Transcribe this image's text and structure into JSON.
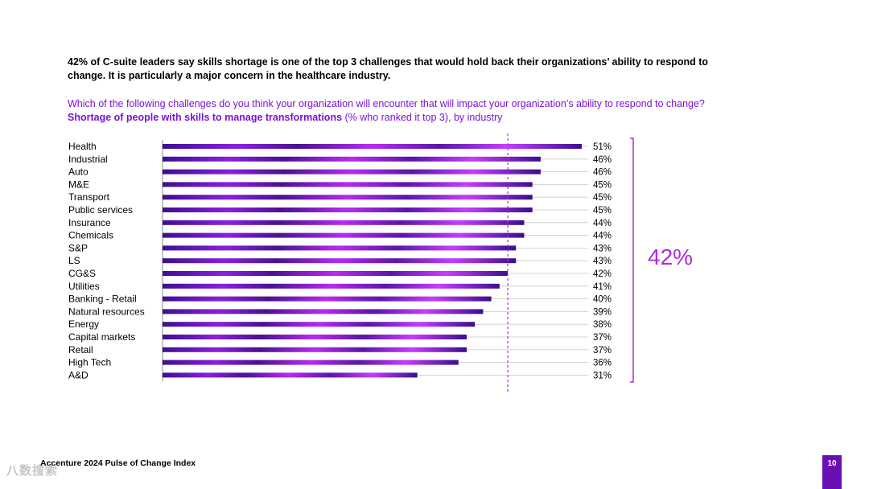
{
  "headline": "42% of C-suite leaders say skills shortage is one of the top 3 challenges that would hold back their organizations’ ability to respond to change. It is particularly a major concern in the healthcare industry.",
  "question": {
    "line1": "Which of the following challenges do you think your organization will encounter that will impact your organization’s ability to respond to change?",
    "bold_part": "Shortage of people with skills to manage transformations",
    "rest": " (% who ranked it top 3), by industry"
  },
  "colors": {
    "bar_dark": "#3b0f8c",
    "bar_light": "#c21bff",
    "accent": "#b02ad8",
    "brand": "#6a0fb4"
  },
  "chart_data": {
    "type": "bar",
    "orientation": "horizontal",
    "unit": "%",
    "xlim": [
      0,
      51
    ],
    "categories": [
      "Health",
      "Industrial",
      "Auto",
      "M&E",
      "Transport",
      "Public services",
      "Insurance",
      "Chemicals",
      "S&P",
      "LS",
      "CG&S",
      "Utilities",
      "Banking - Retail",
      "Natural resources",
      "Energy",
      "Capital markets",
      "Retail",
      "High Tech",
      "A&D"
    ],
    "values": [
      51,
      46,
      46,
      45,
      45,
      45,
      44,
      44,
      43,
      43,
      42,
      41,
      40,
      39,
      38,
      37,
      37,
      36,
      31
    ],
    "labels": [
      "51%",
      "46%",
      "46%",
      "45%",
      "45%",
      "45%",
      "44%",
      "44%",
      "43%",
      "43%",
      "42%",
      "41%",
      "40%",
      "39%",
      "38%",
      "37%",
      "37%",
      "36%",
      "31%"
    ],
    "average": 42,
    "average_label": "42%"
  },
  "footer": {
    "source": "Accenture 2024 Pulse of Change Index",
    "page_number": "10",
    "watermark": "八数搜索"
  }
}
